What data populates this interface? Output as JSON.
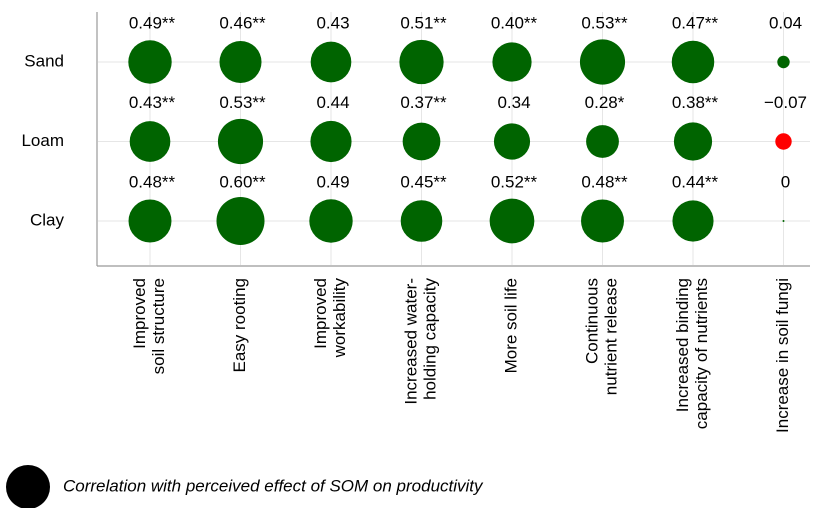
{
  "chart_data": {
    "type": "bubble",
    "categories": [
      [
        "Improved",
        "soil structure"
      ],
      [
        "Easy rooting"
      ],
      [
        "Improved",
        "workability"
      ],
      [
        "Increased water-",
        "holding capacity"
      ],
      [
        "More soil life"
      ],
      [
        "Continuous",
        "nutrient release"
      ],
      [
        "Increased binding",
        "capacity of nutrients"
      ],
      [
        "Increase in soil fungi"
      ]
    ],
    "series": [
      {
        "name": "Sand",
        "values": [
          0.49,
          0.46,
          0.43,
          0.51,
          0.4,
          0.53,
          0.47,
          0.04
        ],
        "value_labels": [
          "0.49**",
          "0.46**",
          "0.43",
          "0.51**",
          "0.40**",
          "0.53**",
          "0.47**",
          "0.04"
        ]
      },
      {
        "name": "Loam",
        "values": [
          0.43,
          0.53,
          0.44,
          0.37,
          0.34,
          0.28,
          0.38,
          -0.07
        ],
        "value_labels": [
          "0.43**",
          "0.53**",
          "0.44",
          "0.37**",
          "0.34",
          "0.28*",
          "0.38**",
          "−0.07"
        ]
      },
      {
        "name": "Clay",
        "values": [
          0.48,
          0.6,
          0.49,
          0.45,
          0.52,
          0.48,
          0.44,
          0
        ],
        "value_labels": [
          "0.48**",
          "0.60**",
          "0.49",
          "0.45**",
          "0.52**",
          "0.48**",
          "0.44**",
          "0"
        ]
      }
    ],
    "colors": {
      "positive": "#006400",
      "negative": "#ff0000"
    },
    "grid": true,
    "legend_label": "Correlation with perceived effect of SOM on productivity",
    "legend_color": "#000000"
  }
}
